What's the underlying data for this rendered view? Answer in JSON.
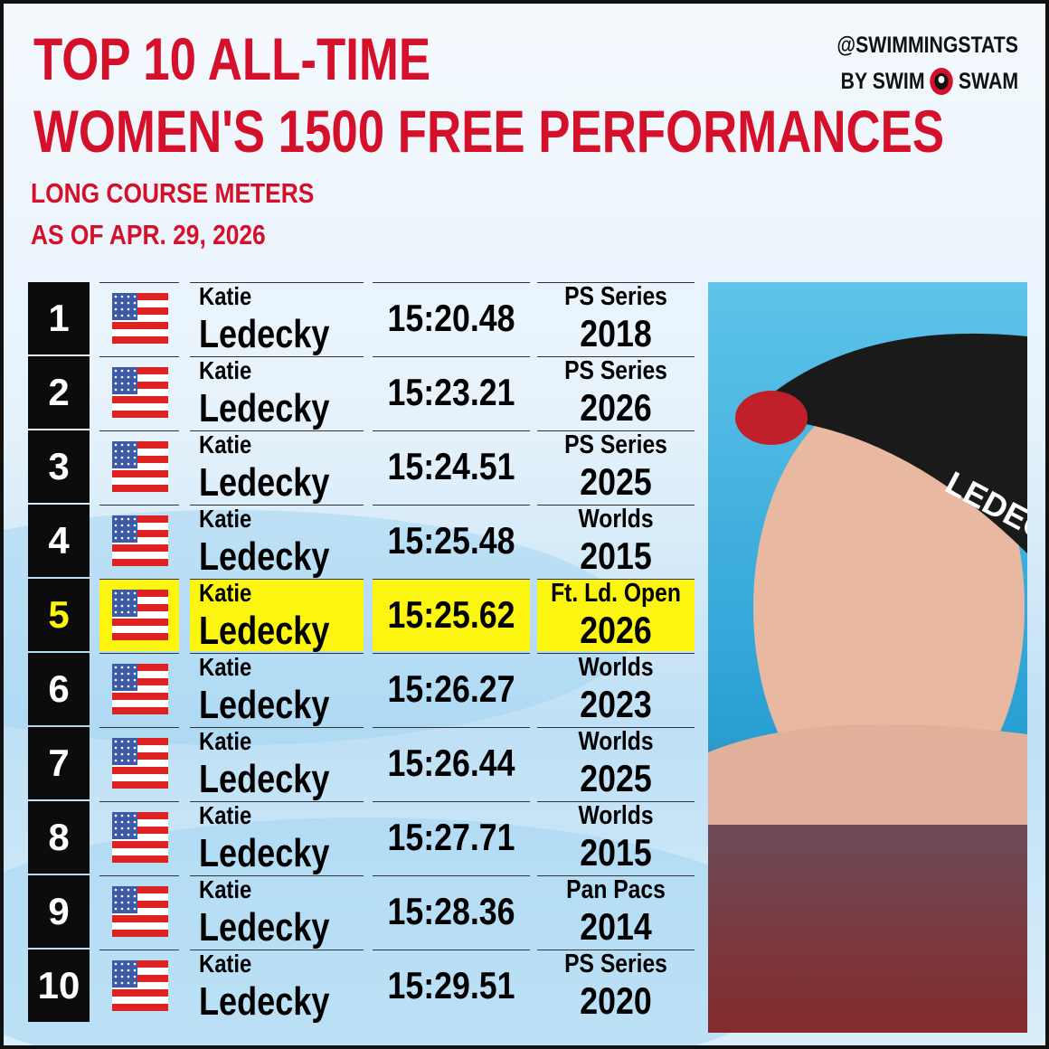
{
  "header": {
    "title": [
      "TOP 10 ALL-TIME",
      "WOMEN'S 1500 FREE PERFORMANCES"
    ],
    "subtitle": [
      "LONG COURSE METERS",
      "AS OF APR. 29, 2026"
    ],
    "brand": {
      "handle": "@SWIMMINGSTATS",
      "by": "BY SWIM",
      "name": "SWAM"
    }
  },
  "table": {
    "rows": [
      [
        "1",
        "Katie",
        "Ledecky",
        "15:20.48",
        "PS Series",
        "2018"
      ],
      [
        "2",
        "Katie",
        "Ledecky",
        "15:23.21",
        "PS Series",
        "2026"
      ],
      [
        "3",
        "Katie",
        "Ledecky",
        "15:24.51",
        "PS Series",
        "2025"
      ],
      [
        "4",
        "Katie",
        "Ledecky",
        "15:25.48",
        "Worlds",
        "2015"
      ],
      [
        "5",
        "Katie",
        "Ledecky",
        "15:25.62",
        "Ft. Ld. Open",
        "2026"
      ],
      [
        "6",
        "Katie",
        "Ledecky",
        "15:26.27",
        "Worlds",
        "2023"
      ],
      [
        "7",
        "Katie",
        "Ledecky",
        "15:26.44",
        "Worlds",
        "2025"
      ],
      [
        "8",
        "Katie",
        "Ledecky",
        "15:27.71",
        "Worlds",
        "2015"
      ],
      [
        "9",
        "Katie",
        "Ledecky",
        "15:28.36",
        "Pan Pacs",
        "2014"
      ],
      [
        "10",
        "Katie",
        "Ledecky",
        "15:29.51",
        "PS Series",
        "2020"
      ]
    ]
  },
  "photo": {
    "cap_text": "LEDECK"
  }
}
